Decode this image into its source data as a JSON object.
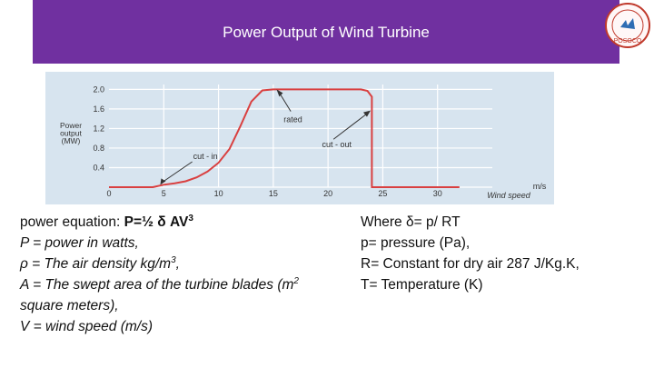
{
  "header": {
    "title": "Power Output of Wind Turbine",
    "color": "#7030a0"
  },
  "logo": {
    "text": "POSOCO",
    "name": "posoco-logo"
  },
  "chart_data": {
    "type": "line",
    "ylabel_lines": [
      "Power",
      "output",
      "(MW)"
    ],
    "x_unit_label": "m/s",
    "xlabel": "Wind speed",
    "xticks": [
      0,
      5,
      10,
      15,
      20,
      25,
      30
    ],
    "yticks": [
      0.4,
      0.8,
      1.2,
      1.6,
      2.0
    ],
    "ytick_labels": [
      "0.4",
      "0.8",
      "1.2",
      "1.6",
      "2.0"
    ],
    "xlim": [
      0,
      35
    ],
    "ylim": [
      0,
      2.1
    ],
    "grid": true,
    "line_color": "#d94040",
    "series": [
      {
        "x": [
          0,
          4,
          5,
          6,
          7,
          8,
          9,
          10,
          11,
          12,
          13,
          14,
          15,
          20,
          23,
          23.6,
          24,
          24,
          32
        ],
        "y": [
          0,
          0,
          0.05,
          0.08,
          0.12,
          0.2,
          0.32,
          0.5,
          0.78,
          1.25,
          1.75,
          1.98,
          2.0,
          2.0,
          2.0,
          1.97,
          1.85,
          0,
          0
        ]
      }
    ],
    "annotations": [
      {
        "text": "cut - in",
        "x": 4.6,
        "y": 0.03
      },
      {
        "text": "rated",
        "x": 15.3,
        "y": 2.0
      },
      {
        "text": "cut - out",
        "x": 23.8,
        "y": 1.55
      }
    ]
  },
  "equations": {
    "left": {
      "line1_prefix": "power equation: ",
      "line1_formula": "P=½ δ AV",
      "line1_sup": "3",
      "line2": "P = power in watts,",
      "line3_main": "ρ = The air density kg/m",
      "line3_sup": "3",
      "line3_end": ",",
      "line4_main": "A = The swept area of the turbine blades (m",
      "line4_sup": "2",
      "line5": "square meters),",
      "line6": "V = wind speed (m/s)"
    },
    "right": {
      "line1": "Where δ= p/ RT",
      "line2": "p= pressure (Pa),",
      "line3": "R= Constant for dry air 287 J/Kg.K,",
      "line4": "T= Temperature (K)"
    }
  }
}
